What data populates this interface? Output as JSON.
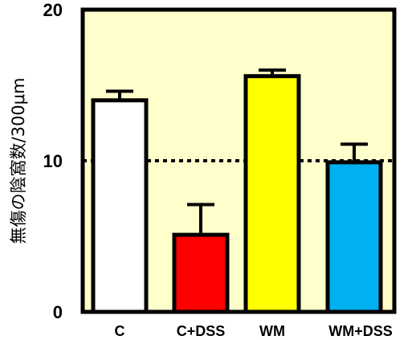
{
  "chart_data": {
    "type": "bar",
    "categories": [
      "C",
      "C+DSS",
      "WM",
      "WM+DSS"
    ],
    "values": [
      14.0,
      5.1,
      15.6,
      9.9
    ],
    "errors": [
      0.6,
      2.0,
      0.4,
      1.2
    ],
    "colors": [
      "#ffffff",
      "#ff0000",
      "#ffff00",
      "#00b0f0"
    ],
    "ylabel": "無傷の陰窩数/300μm",
    "ylim": [
      0,
      20
    ],
    "yticks": [
      0,
      10,
      20
    ],
    "reference_line": 10,
    "plot_background": "#ffffcc"
  }
}
